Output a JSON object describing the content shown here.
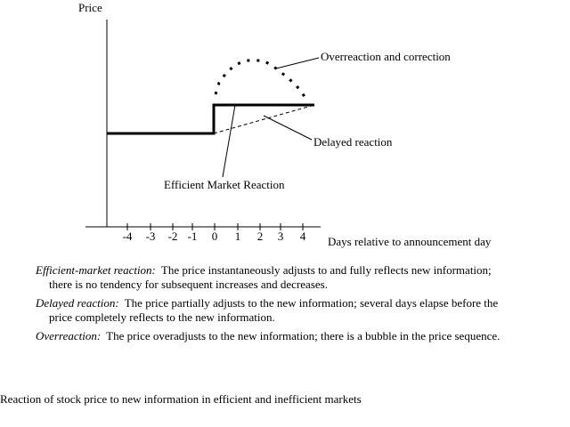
{
  "axis": {
    "y_label": "Price",
    "x_label": "Days relative to announcement day",
    "x_ticks": [
      "-4",
      "-3",
      "-2",
      "-1",
      "0",
      "1",
      "2",
      "3",
      "4"
    ]
  },
  "annotations": {
    "overreaction": "Overreaction and correction",
    "delayed": "Delayed reaction",
    "efficient": "Efficient Market Reaction"
  },
  "definitions": [
    {
      "term": "Efficient-market reaction:",
      "text": "The price instantaneously adjusts to and fully reflects new information; there is no tendency for subsequent increases and decreases."
    },
    {
      "term": "Delayed reaction:",
      "text": "The price partially adjusts to the new information; several days elapse before the price completely reflects to the new information."
    },
    {
      "term": "Overreaction:",
      "text": "The price overadjusts to the new information; there is a bubble in the price sequence."
    }
  ],
  "caption": "Reaction of stock price to new information in efficient and inefficient markets"
}
